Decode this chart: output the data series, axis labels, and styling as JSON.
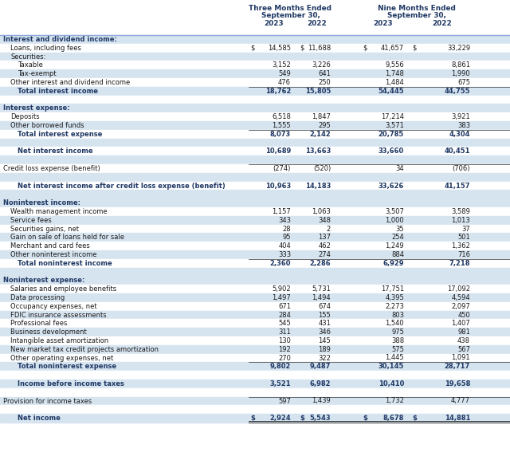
{
  "title_3m_line1": "Three Months Ended",
  "title_3m_line2": "September 30,",
  "title_9m_line1": "Nine Months Ended",
  "title_9m_line2": "September 30,",
  "col_headers": [
    "2023",
    "2022",
    "2023",
    "2022"
  ],
  "alt_color": "#d6e4f0",
  "white_color": "#ffffff",
  "bold_color": "#1f3864",
  "normal_color": "#1a1a1a",
  "header_line_color": "#8eaadb",
  "figw": 6.4,
  "figh": 5.87,
  "rows": [
    {
      "label": "Interest and dividend income:",
      "indent": 0,
      "vals": [
        "",
        "",
        "",
        ""
      ],
      "style": "section",
      "bg": "alt"
    },
    {
      "label": "Loans, including fees",
      "indent": 1,
      "vals": [
        "14,585",
        "11,688",
        "41,657",
        "33,229"
      ],
      "style": "normal",
      "bg": "white",
      "dollar": true
    },
    {
      "label": "Securities:",
      "indent": 1,
      "vals": [
        "",
        "",
        "",
        ""
      ],
      "style": "normal",
      "bg": "alt"
    },
    {
      "label": "Taxable",
      "indent": 2,
      "vals": [
        "3,152",
        "3,226",
        "9,556",
        "8,861"
      ],
      "style": "normal",
      "bg": "white"
    },
    {
      "label": "Tax-exempt",
      "indent": 2,
      "vals": [
        "549",
        "641",
        "1,748",
        "1,990"
      ],
      "style": "normal",
      "bg": "alt"
    },
    {
      "label": "Other interest and dividend income",
      "indent": 1,
      "vals": [
        "476",
        "250",
        "1,484",
        "675"
      ],
      "style": "normal",
      "bg": "white"
    },
    {
      "label": "Total interest income",
      "indent": 2,
      "vals": [
        "18,762",
        "15,805",
        "54,445",
        "44,755"
      ],
      "style": "bold",
      "bg": "alt",
      "topline": true
    },
    {
      "label": "",
      "indent": 0,
      "vals": [
        "",
        "",
        "",
        ""
      ],
      "style": "spacer",
      "bg": "white"
    },
    {
      "label": "Interest expense:",
      "indent": 0,
      "vals": [
        "",
        "",
        "",
        ""
      ],
      "style": "section",
      "bg": "alt"
    },
    {
      "label": "Deposits",
      "indent": 1,
      "vals": [
        "6,518",
        "1,847",
        "17,214",
        "3,921"
      ],
      "style": "normal",
      "bg": "white"
    },
    {
      "label": "Other borrowed funds",
      "indent": 1,
      "vals": [
        "1,555",
        "295",
        "3,571",
        "383"
      ],
      "style": "normal",
      "bg": "alt"
    },
    {
      "label": "Total interest expense",
      "indent": 2,
      "vals": [
        "8,073",
        "2,142",
        "20,785",
        "4,304"
      ],
      "style": "bold",
      "bg": "white",
      "topline": true
    },
    {
      "label": "",
      "indent": 0,
      "vals": [
        "",
        "",
        "",
        ""
      ],
      "style": "spacer",
      "bg": "alt"
    },
    {
      "label": "Net interest income",
      "indent": 2,
      "vals": [
        "10,689",
        "13,663",
        "33,660",
        "40,451"
      ],
      "style": "bold",
      "bg": "white"
    },
    {
      "label": "",
      "indent": 0,
      "vals": [
        "",
        "",
        "",
        ""
      ],
      "style": "spacer",
      "bg": "alt"
    },
    {
      "label": "Credit loss expense (benefit)",
      "indent": 0,
      "vals": [
        "(274)",
        "(520)",
        "34",
        "(706)"
      ],
      "style": "normal",
      "bg": "white",
      "topline": true
    },
    {
      "label": "",
      "indent": 0,
      "vals": [
        "",
        "",
        "",
        ""
      ],
      "style": "spacer",
      "bg": "alt"
    },
    {
      "label": "Net interest income after credit loss expense (benefit)",
      "indent": 2,
      "vals": [
        "10,963",
        "14,183",
        "33,626",
        "41,157"
      ],
      "style": "bold",
      "bg": "white"
    },
    {
      "label": "",
      "indent": 0,
      "vals": [
        "",
        "",
        "",
        ""
      ],
      "style": "spacer",
      "bg": "alt"
    },
    {
      "label": "Noninterest income:",
      "indent": 0,
      "vals": [
        "",
        "",
        "",
        ""
      ],
      "style": "section",
      "bg": "alt"
    },
    {
      "label": "Wealth management income",
      "indent": 1,
      "vals": [
        "1,157",
        "1,063",
        "3,507",
        "3,589"
      ],
      "style": "normal",
      "bg": "white"
    },
    {
      "label": "Service fees",
      "indent": 1,
      "vals": [
        "343",
        "348",
        "1,000",
        "1,013"
      ],
      "style": "normal",
      "bg": "alt"
    },
    {
      "label": "Securities gains, net",
      "indent": 1,
      "vals": [
        "28",
        "2",
        "35",
        "37"
      ],
      "style": "normal",
      "bg": "white"
    },
    {
      "label": "Gain on sale of loans held for sale",
      "indent": 1,
      "vals": [
        "95",
        "137",
        "254",
        "501"
      ],
      "style": "normal",
      "bg": "alt"
    },
    {
      "label": "Merchant and card fees",
      "indent": 1,
      "vals": [
        "404",
        "462",
        "1,249",
        "1,362"
      ],
      "style": "normal",
      "bg": "white"
    },
    {
      "label": "Other noninterest income",
      "indent": 1,
      "vals": [
        "333",
        "274",
        "884",
        "716"
      ],
      "style": "normal",
      "bg": "alt"
    },
    {
      "label": "Total noninterest income",
      "indent": 2,
      "vals": [
        "2,360",
        "2,286",
        "6,929",
        "7,218"
      ],
      "style": "bold",
      "bg": "white",
      "topline": true
    },
    {
      "label": "",
      "indent": 0,
      "vals": [
        "",
        "",
        "",
        ""
      ],
      "style": "spacer",
      "bg": "alt"
    },
    {
      "label": "Noninterest expense:",
      "indent": 0,
      "vals": [
        "",
        "",
        "",
        ""
      ],
      "style": "section",
      "bg": "alt"
    },
    {
      "label": "Salaries and employee benefits",
      "indent": 1,
      "vals": [
        "5,902",
        "5,731",
        "17,751",
        "17,092"
      ],
      "style": "normal",
      "bg": "white"
    },
    {
      "label": "Data processing",
      "indent": 1,
      "vals": [
        "1,497",
        "1,494",
        "4,395",
        "4,594"
      ],
      "style": "normal",
      "bg": "alt"
    },
    {
      "label": "Occupancy expenses, net",
      "indent": 1,
      "vals": [
        "671",
        "674",
        "2,273",
        "2,097"
      ],
      "style": "normal",
      "bg": "white"
    },
    {
      "label": "FDIC insurance assessments",
      "indent": 1,
      "vals": [
        "284",
        "155",
        "803",
        "450"
      ],
      "style": "normal",
      "bg": "alt"
    },
    {
      "label": "Professional fees",
      "indent": 1,
      "vals": [
        "545",
        "431",
        "1,540",
        "1,407"
      ],
      "style": "normal",
      "bg": "white"
    },
    {
      "label": "Business development",
      "indent": 1,
      "vals": [
        "311",
        "346",
        "975",
        "981"
      ],
      "style": "normal",
      "bg": "alt"
    },
    {
      "label": "Intangible asset amortization",
      "indent": 1,
      "vals": [
        "130",
        "145",
        "388",
        "438"
      ],
      "style": "normal",
      "bg": "white"
    },
    {
      "label": "New market tax credit projects amortization",
      "indent": 1,
      "vals": [
        "192",
        "189",
        "575",
        "567"
      ],
      "style": "normal",
      "bg": "alt"
    },
    {
      "label": "Other operating expenses, net",
      "indent": 1,
      "vals": [
        "270",
        "322",
        "1,445",
        "1,091"
      ],
      "style": "normal",
      "bg": "white"
    },
    {
      "label": "Total noninterest expense",
      "indent": 2,
      "vals": [
        "9,802",
        "9,487",
        "30,145",
        "28,717"
      ],
      "style": "bold",
      "bg": "alt",
      "topline": true
    },
    {
      "label": "",
      "indent": 0,
      "vals": [
        "",
        "",
        "",
        ""
      ],
      "style": "spacer",
      "bg": "white"
    },
    {
      "label": "Income before income taxes",
      "indent": 2,
      "vals": [
        "3,521",
        "6,982",
        "10,410",
        "19,658"
      ],
      "style": "bold",
      "bg": "alt"
    },
    {
      "label": "",
      "indent": 0,
      "vals": [
        "",
        "",
        "",
        ""
      ],
      "style": "spacer",
      "bg": "white"
    },
    {
      "label": "Provision for income taxes",
      "indent": 0,
      "vals": [
        "597",
        "1,439",
        "1,732",
        "4,777"
      ],
      "style": "normal",
      "bg": "alt",
      "topline": true
    },
    {
      "label": "",
      "indent": 0,
      "vals": [
        "",
        "",
        "",
        ""
      ],
      "style": "spacer",
      "bg": "white"
    },
    {
      "label": "Net income",
      "indent": 2,
      "vals": [
        "2,924",
        "5,543",
        "8,678",
        "14,881"
      ],
      "style": "bold",
      "bg": "alt",
      "dollar": true,
      "doubleline": true
    }
  ]
}
